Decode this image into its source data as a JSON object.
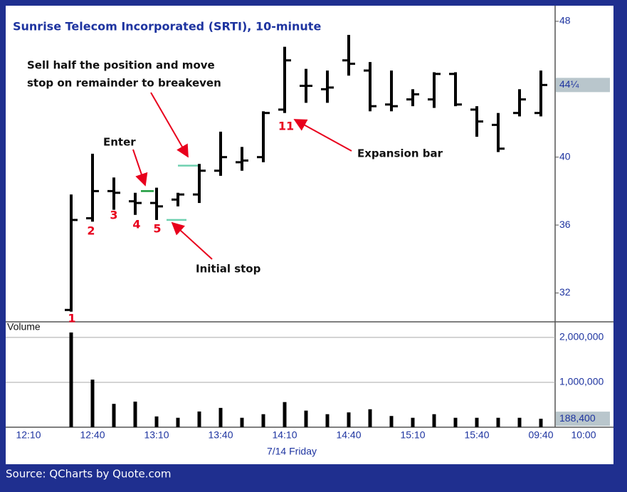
{
  "chart_data": {
    "type": "ohlc",
    "title": "Sunrise Telecom Incorporated (SRTI), 10-minute",
    "categories": [
      "12:10",
      null,
      null,
      "12:40",
      null,
      null,
      "13:10",
      null,
      null,
      "13:40",
      null,
      null,
      "14:10",
      null,
      null,
      "14:40",
      null,
      null,
      "15:10",
      null,
      null,
      "15:40",
      null,
      null,
      "09:40",
      null,
      "10:00"
    ],
    "open": [
      null,
      null,
      31.0,
      36.4,
      38.0,
      37.4,
      37.3,
      37.5,
      37.8,
      39.2,
      39.7,
      40.0,
      42.8,
      44.2,
      44.0,
      45.7,
      45.1,
      43.1,
      43.4,
      43.4,
      44.9,
      42.8,
      41.9,
      42.6,
      42.6,
      null,
      null
    ],
    "high": [
      null,
      null,
      37.8,
      40.2,
      38.8,
      37.9,
      38.2,
      37.9,
      39.6,
      41.5,
      40.6,
      42.7,
      46.5,
      45.2,
      45.1,
      47.2,
      45.6,
      45.1,
      44.0,
      45.0,
      45.0,
      43.0,
      42.6,
      44.0,
      45.1,
      null,
      null
    ],
    "low": [
      null,
      null,
      30.9,
      36.2,
      36.9,
      36.6,
      36.3,
      37.1,
      37.3,
      38.9,
      39.2,
      39.7,
      42.6,
      43.2,
      43.2,
      44.8,
      42.7,
      42.7,
      43.0,
      42.9,
      43.0,
      41.2,
      40.3,
      42.4,
      42.4,
      null,
      null
    ],
    "close": [
      null,
      null,
      36.3,
      38.0,
      37.9,
      37.3,
      37.1,
      37.8,
      39.2,
      40.0,
      39.8,
      42.6,
      45.7,
      44.2,
      44.1,
      45.5,
      43.0,
      43.0,
      43.7,
      44.9,
      43.1,
      42.1,
      40.5,
      43.4,
      44.25,
      null,
      null
    ],
    "volume": [
      null,
      null,
      2110000,
      1060000,
      520000,
      570000,
      240000,
      210000,
      350000,
      430000,
      210000,
      290000,
      560000,
      370000,
      290000,
      330000,
      400000,
      250000,
      210000,
      290000,
      210000,
      210000,
      210000,
      210000,
      188400,
      null,
      null
    ],
    "color": "#000000",
    "ylim": [
      30.3,
      48.5
    ],
    "yticks": [
      32,
      36,
      40,
      48
    ],
    "last_close_label": "44¼",
    "volume_ylim": [
      0,
      2300000
    ],
    "volume_yticks": [
      {
        "value": 2000000,
        "label": "2,000,000"
      },
      {
        "value": 1000000,
        "label": "1,000,000"
      }
    ],
    "last_volume_label": "188,400",
    "volume_label": "Volume",
    "x_label": "7/14 Friday",
    "entry_level": 38.0,
    "stop_level": 36.3,
    "breakeven_level": 39.5,
    "annotations": [
      "Sell half the position and move",
      "stop on remainder to breakeven",
      "Enter",
      "Initial stop",
      "Expansion bar"
    ],
    "bar_labels": [
      "1",
      "2",
      "3",
      "4",
      "5",
      "11"
    ]
  },
  "source": "Source: QCharts by Quote.com"
}
